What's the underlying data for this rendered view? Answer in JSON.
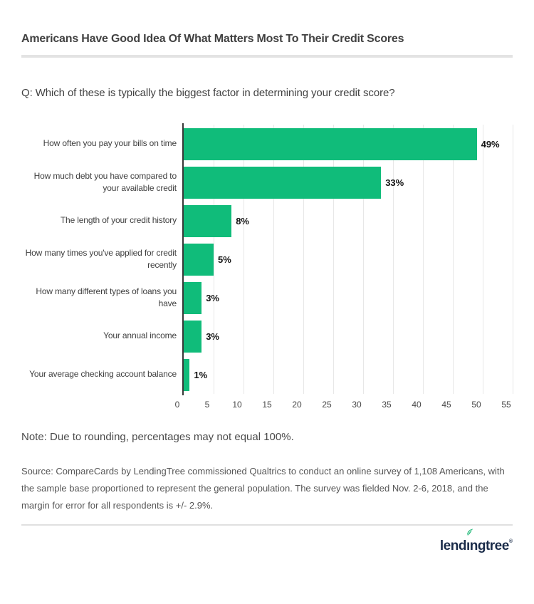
{
  "header": {
    "title": "Americans Have Good Idea Of What Matters Most To Their Credit Scores"
  },
  "question": "Q: Which of these is typically the biggest factor in determining your credit score?",
  "chart_data": {
    "type": "bar",
    "orientation": "horizontal",
    "title": "Q: Which of these is typically the biggest factor in determining your credit score?",
    "categories": [
      "How often you pay your bills on time",
      "How much debt you have compared to your available credit",
      "The length of your credit history",
      "How many times you've applied for credit recently",
      "How many different types of loans you have",
      "Your annual income",
      "Your average checking account balance"
    ],
    "values": [
      49,
      33,
      8,
      5,
      3,
      3,
      1
    ],
    "value_labels": [
      "49%",
      "33%",
      "8%",
      "5%",
      "3%",
      "3%",
      "1%"
    ],
    "x_ticks": [
      0,
      5,
      10,
      15,
      20,
      25,
      30,
      35,
      40,
      45,
      50,
      55
    ],
    "xlim": [
      0,
      55
    ],
    "xlabel": "",
    "ylabel": "",
    "grid": true,
    "legend": "none",
    "bar_color": "#10bc7a",
    "axis_line_color": "#383838",
    "gridline_color": "#e7e7e7"
  },
  "note": "Note: Due to rounding, percentages may not equal 100%.",
  "source": "Source: CompareCards by LendingTree commissioned Qualtrics to conduct an online survey of 1,108 Americans, with the sample base proportioned to represent the general population. The survey was fielded Nov. 2-6, 2018, and the margin for error for all respondents is +/- 2.9%.",
  "footer": {
    "logo": {
      "part1": "lend",
      "dotless_i": "ı",
      "part2": "ngtree",
      "mark": "®",
      "brand_navy": "#1a2b49",
      "leaf_green": "#21b978"
    }
  }
}
